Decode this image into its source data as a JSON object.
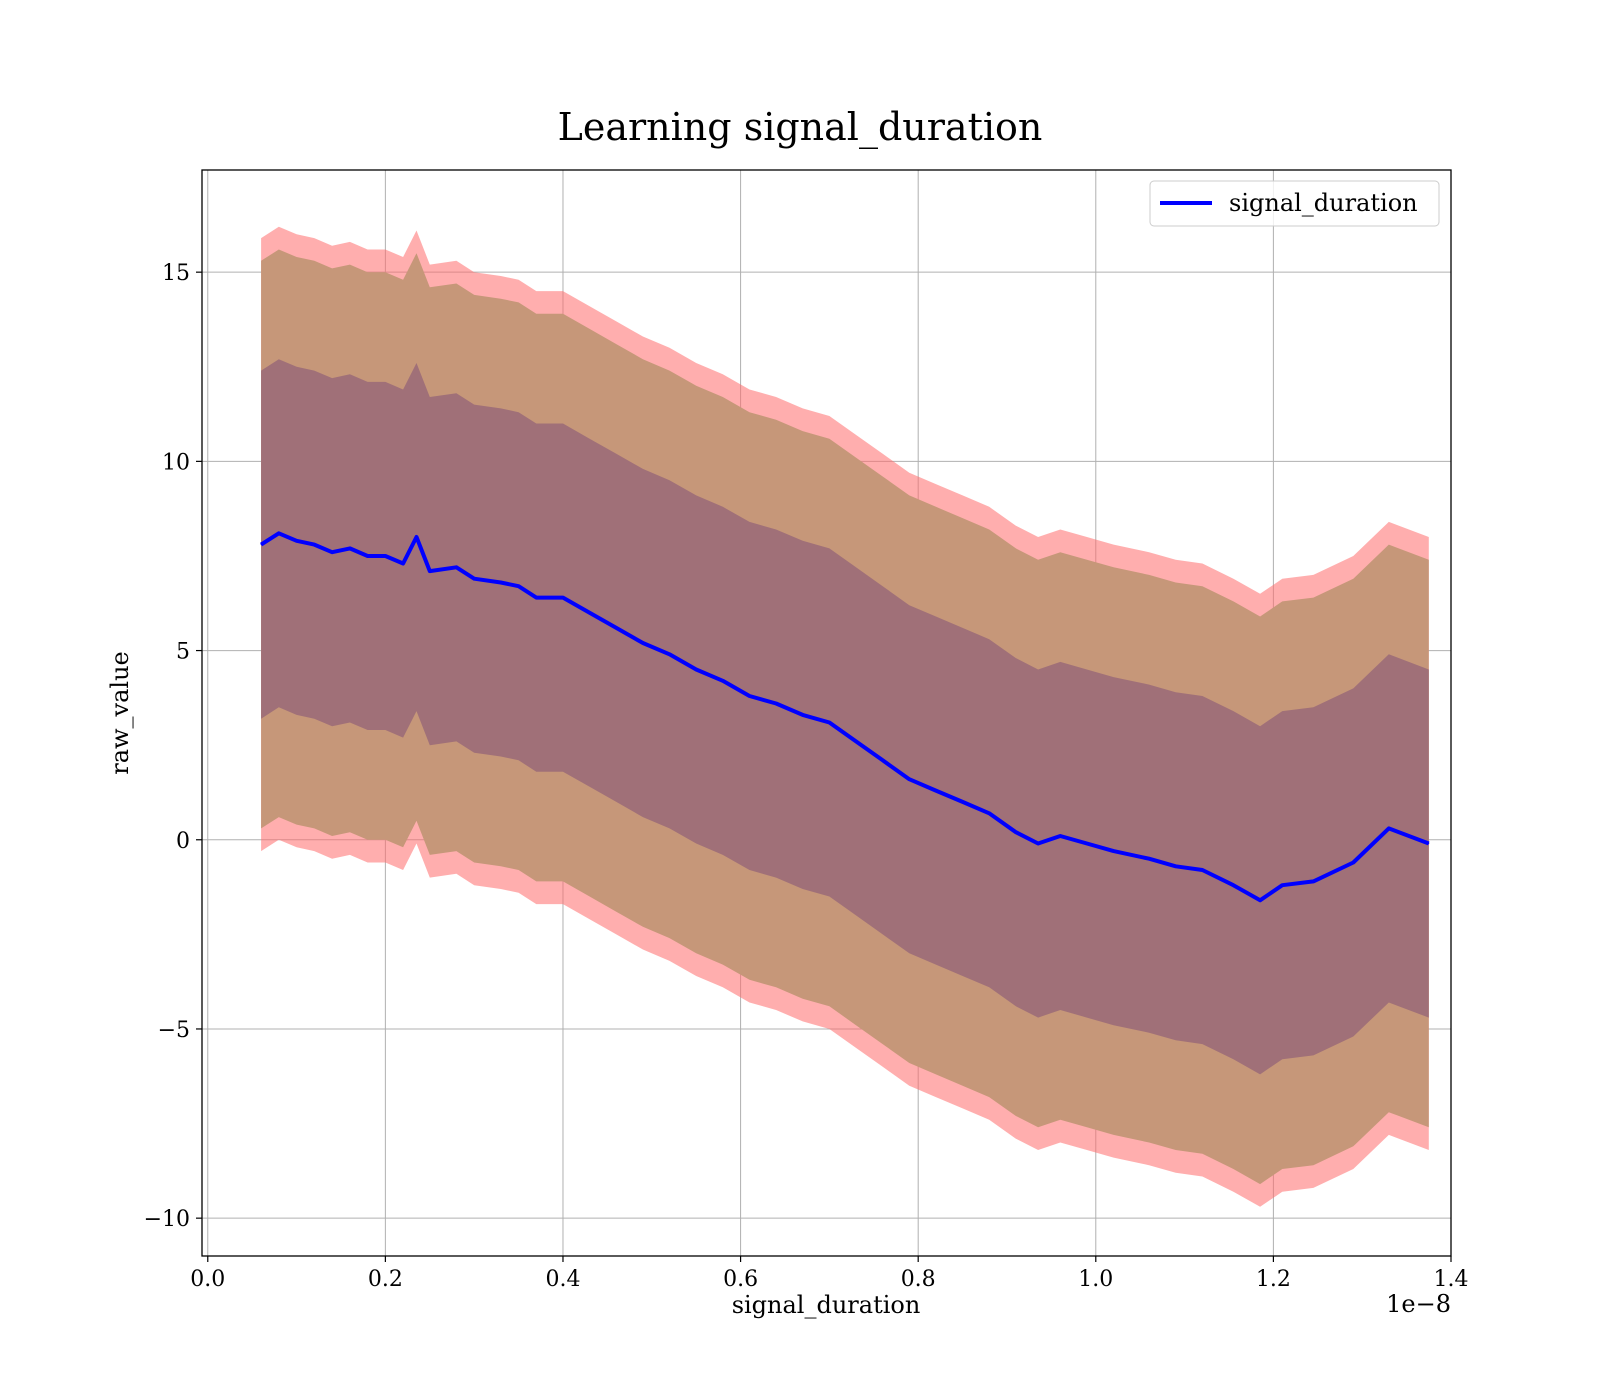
{
  "chart_data": {
    "type": "line",
    "title": "Learning signal_duration",
    "xlabel": "signal_duration",
    "ylabel": "raw_value",
    "x_offset_label": "1e−8",
    "xlim": [
      -0.0065,
      1.4
    ],
    "ylim": [
      -11,
      17.7
    ],
    "x_ticks": [
      0.0,
      0.2,
      0.4,
      0.6,
      0.8,
      1.0,
      1.2,
      1.4
    ],
    "x_tick_labels": [
      "0.0",
      "0.2",
      "0.4",
      "0.6",
      "0.8",
      "1.0",
      "1.2",
      "1.4"
    ],
    "y_ticks": [
      -10,
      -5,
      0,
      5,
      10,
      15
    ],
    "y_tick_labels": [
      "−10",
      "−5",
      "0",
      "5",
      "10",
      "15"
    ],
    "grid": true,
    "legend": {
      "position": "top-right",
      "entries": [
        "signal_duration"
      ]
    },
    "colors": {
      "mean_line": "#0000ff",
      "outer_band": "#ff6b6b",
      "middle_band": "#c69779",
      "inner_band": "#a07078",
      "grid": "#b0b0b0"
    },
    "series": [
      {
        "name": "signal_duration",
        "x": [
          0.06,
          0.08,
          0.1,
          0.12,
          0.14,
          0.16,
          0.18,
          0.2,
          0.22,
          0.235,
          0.25,
          0.28,
          0.3,
          0.33,
          0.35,
          0.37,
          0.4,
          0.43,
          0.46,
          0.49,
          0.52,
          0.55,
          0.58,
          0.61,
          0.64,
          0.67,
          0.7,
          0.73,
          0.76,
          0.79,
          0.82,
          0.85,
          0.88,
          0.91,
          0.935,
          0.96,
          0.99,
          1.02,
          1.06,
          1.09,
          1.12,
          1.155,
          1.185,
          1.21,
          1.245,
          1.29,
          1.33,
          1.375
        ],
        "y": [
          7.8,
          8.1,
          7.9,
          7.8,
          7.6,
          7.7,
          7.5,
          7.5,
          7.3,
          8.0,
          7.1,
          7.2,
          6.9,
          6.8,
          6.7,
          6.4,
          6.4,
          6.0,
          5.6,
          5.2,
          4.9,
          4.5,
          4.2,
          3.8,
          3.6,
          3.3,
          3.1,
          2.6,
          2.1,
          1.6,
          1.3,
          1.0,
          0.7,
          0.2,
          -0.1,
          0.1,
          -0.1,
          -0.3,
          -0.5,
          -0.7,
          -0.8,
          -1.2,
          -1.6,
          -1.2,
          -1.1,
          -0.6,
          0.3,
          -0.1
        ],
        "inner_band_halfwidth": 4.6,
        "middle_band_halfwidth": 7.5,
        "outer_band_halfwidth": 8.1
      }
    ]
  }
}
